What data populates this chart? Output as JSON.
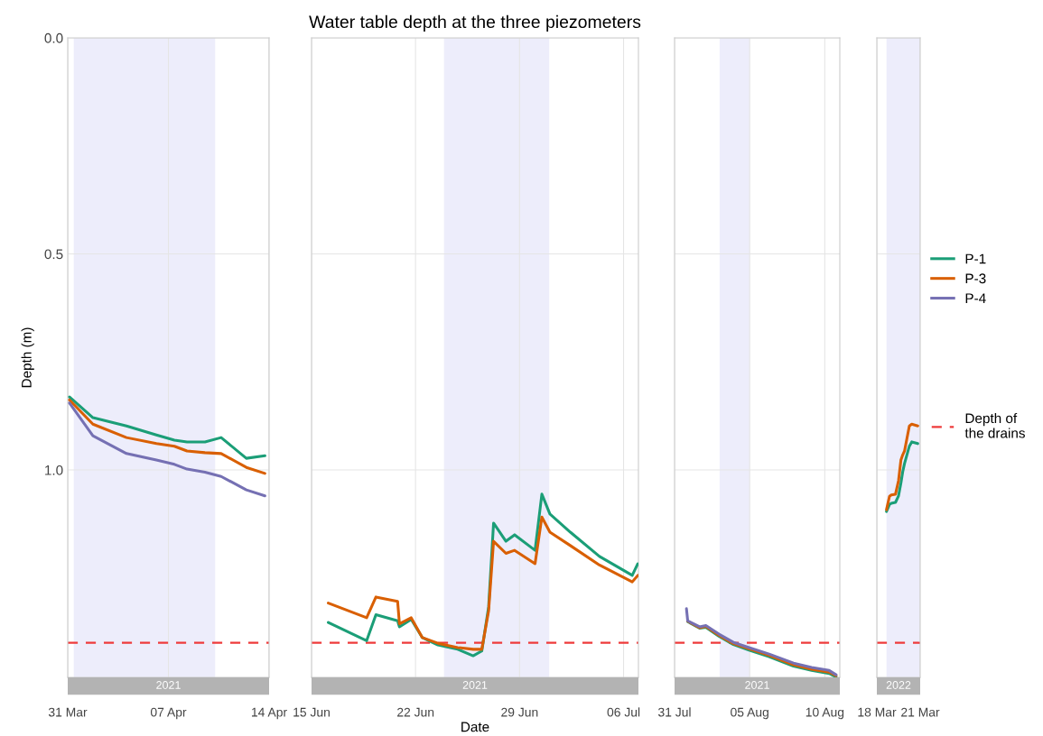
{
  "chart_data": [
    {
      "type": "line",
      "ylabel": "Depth (m)",
      "subtitle": "2021",
      "legend": "right",
      "grid": true,
      "tick_labels": "xy",
      "xlim": [
        "2021-03-31",
        "2021-04-14"
      ],
      "xticks": [
        {
          "value": "2021-03-31",
          "label": "31 Mar"
        },
        {
          "value": "2021-04-07",
          "label": "07 Apr"
        },
        {
          "value": "2021-04-14",
          "label": "14 Apr"
        }
      ],
      "ylim": [
        1.48,
        0
      ],
      "yticks": [
        {
          "value": 0,
          "label": "0.0"
        },
        {
          "value": 0.5,
          "label": "0.5"
        },
        {
          "value": 1,
          "label": "1.0"
        }
      ],
      "bands": [
        {
          "axis": "x",
          "from": "2021-03-31T10:00",
          "to": "2021-04-10T06:00",
          "color": "#e6e6fa"
        }
      ],
      "ref_lines": [
        {
          "axis": "y",
          "value": 1.4,
          "label": "Depth of the drains",
          "color": "#ee3b3b",
          "line_style": "dashed"
        }
      ],
      "x": [
        "2021-03-31T03:00",
        "2021-04-01T18:00",
        "2021-04-04T02:00",
        "2021-04-06T04:00",
        "2021-04-07T10:00",
        "2021-04-08T07:00",
        "2021-04-09T13:00",
        "2021-04-10T16:00",
        "2021-04-12T10:00",
        "2021-04-13T17:00"
      ],
      "series": [
        {
          "name": "P-1",
          "color": "#1b9e77",
          "values": [
            0.831,
            0.879,
            0.898,
            0.919,
            0.931,
            0.935,
            0.935,
            0.925,
            0.973,
            0.967
          ]
        },
        {
          "name": "P-3",
          "color": "#d95f02",
          "values": [
            0.838,
            0.894,
            0.925,
            0.939,
            0.945,
            0.956,
            0.96,
            0.962,
            0.994,
            1.008
          ]
        },
        {
          "name": "P-4",
          "color": "#7570b3",
          "values": [
            0.845,
            0.921,
            0.962,
            0.977,
            0.987,
            0.998,
            1.005,
            1.015,
            1.046,
            1.06
          ]
        }
      ]
    },
    {
      "type": "line",
      "title": "Water table depth at the three piezometers",
      "xlabel": "Date",
      "subtitle": "2021",
      "grid": true,
      "tick_labels": "x",
      "xlim": [
        "2021-06-15",
        "2021-07-07"
      ],
      "xticks": [
        {
          "value": "2021-06-15",
          "label": "15 Jun"
        },
        {
          "value": "2021-06-22",
          "label": "22 Jun"
        },
        {
          "value": "2021-06-29",
          "label": "29 Jun"
        },
        {
          "value": "2021-07-06",
          "label": "06 Jul"
        }
      ],
      "ylim": [
        1.48,
        0
      ],
      "yticks": [
        0,
        0.5,
        1
      ],
      "bands": [
        {
          "axis": "x",
          "from": "2021-06-23T22:00",
          "to": "2021-07-01T00:00",
          "color": "#e6e6fa"
        }
      ],
      "ref_lines": [
        {
          "axis": "y",
          "value": 1.4,
          "color": "#ee3b3b",
          "line_style": "dashed"
        }
      ],
      "x": [
        "2021-06-16T03:00",
        "2021-06-18T17:00",
        "2021-06-19T08:00",
        "2021-06-20T19:00",
        "2021-06-20T22:00",
        "2021-06-21T17:00",
        "2021-06-22T11:00",
        "2021-06-23T12:00",
        "2021-06-24T20:00",
        "2021-06-25T21:00",
        "2021-06-26T11:00",
        "2021-06-26T22:00",
        "2021-06-27T06:00",
        "2021-06-28T02:00",
        "2021-06-28T16:00",
        "2021-06-30T01:00",
        "2021-06-30T12:00",
        "2021-07-01T01:00",
        "2021-07-02T10:00",
        "2021-07-04T09:00",
        "2021-07-06T14:00",
        "2021-07-06T23:00"
      ],
      "series": [
        {
          "color": "#1b9e77",
          "values": [
            1.353,
            1.395,
            1.335,
            1.349,
            1.363,
            1.346,
            1.388,
            1.405,
            1.415,
            1.43,
            1.419,
            1.317,
            1.123,
            1.165,
            1.15,
            1.186,
            1.056,
            1.102,
            1.144,
            1.2,
            1.244,
            1.217
          ]
        },
        {
          "color": "#d95f02",
          "values": [
            1.308,
            1.342,
            1.294,
            1.304,
            1.356,
            1.342,
            1.388,
            1.401,
            1.411,
            1.415,
            1.415,
            1.326,
            1.165,
            1.193,
            1.186,
            1.217,
            1.109,
            1.144,
            1.175,
            1.22,
            1.259,
            1.244
          ]
        }
      ]
    },
    {
      "type": "line",
      "subtitle": "2021",
      "grid": true,
      "tick_labels": "x",
      "xlim": [
        "2021-07-31",
        "2021-08-11"
      ],
      "xticks": [
        {
          "value": "2021-07-31",
          "label": "31 Jul"
        },
        {
          "value": "2021-08-05",
          "label": "05 Aug"
        },
        {
          "value": "2021-08-10",
          "label": "10 Aug"
        }
      ],
      "ylim": [
        1.48,
        0
      ],
      "yticks": [
        0,
        0.5,
        1
      ],
      "bands": [
        {
          "axis": "x",
          "from": "2021-08-03",
          "to": "2021-08-05",
          "color": "#e6e6fa"
        }
      ],
      "ref_lines": [
        {
          "axis": "y",
          "value": 1.4,
          "color": "#ee3b3b",
          "line_style": "dashed"
        }
      ],
      "x": [
        "2021-07-31T19:00",
        "2021-07-31T21:00",
        "2021-08-01T16:00",
        "2021-08-02T02:00",
        "2021-08-02T23:00",
        "2021-08-03T22:00",
        "2021-08-04T23:00",
        "2021-08-06T07:00",
        "2021-08-07T22:00",
        "2021-08-09T03:00",
        "2021-08-10T07:00",
        "2021-08-10T18:00"
      ],
      "series": [
        {
          "color": "#1b9e77",
          "values": [
            null,
            1.351,
            1.366,
            1.364,
            1.385,
            1.404,
            1.417,
            1.432,
            1.454,
            1.464,
            1.471,
            1.479
          ]
        },
        {
          "color": "#d95f02",
          "values": [
            null,
            1.35,
            1.365,
            1.362,
            1.383,
            1.402,
            1.414,
            1.429,
            1.451,
            1.461,
            1.468,
            1.476
          ]
        },
        {
          "color": "#7570b3",
          "values": [
            1.321,
            1.349,
            1.363,
            1.36,
            1.38,
            1.399,
            1.411,
            1.426,
            1.447,
            1.457,
            1.464,
            1.474
          ]
        }
      ]
    },
    {
      "type": "line",
      "subtitle": "2022",
      "grid": true,
      "tick_labels": "x",
      "xlim": [
        "2022-03-18",
        "2022-03-21"
      ],
      "xticks": [
        {
          "value": "2022-03-18",
          "label": "18 Mar"
        },
        {
          "value": "2022-03-21",
          "label": "21 Mar"
        }
      ],
      "ylim": [
        1.48,
        0
      ],
      "yticks": [
        0,
        0.5,
        1
      ],
      "bands": [
        {
          "axis": "x",
          "from": "2022-03-18T16:00",
          "to": "2022-03-21",
          "color": "#e6e6fa"
        }
      ],
      "ref_lines": [
        {
          "axis": "y",
          "value": 1.4,
          "color": "#ee3b3b",
          "line_style": "dashed"
        }
      ],
      "x": [
        "2022-03-18T16:00",
        "2022-03-18T21:00",
        "2022-03-19T00:00",
        "2022-03-19T07:00",
        "2022-03-19T12:00",
        "2022-03-19T16:00",
        "2022-03-19T19:00",
        "2022-03-19T22:00",
        "2022-03-20T06:00",
        "2022-03-20T10:00",
        "2022-03-20T20:00"
      ],
      "series": [
        {
          "color": "#1b9e77",
          "values": [
            1.096,
            1.08,
            1.077,
            1.075,
            1.06,
            1.03,
            1.004,
            0.985,
            0.945,
            0.935,
            0.939
          ]
        },
        {
          "color": "#d95f02",
          "values": [
            1.092,
            1.061,
            1.058,
            1.056,
            1.025,
            0.977,
            0.965,
            0.956,
            0.898,
            0.894,
            0.898
          ]
        }
      ]
    }
  ]
}
